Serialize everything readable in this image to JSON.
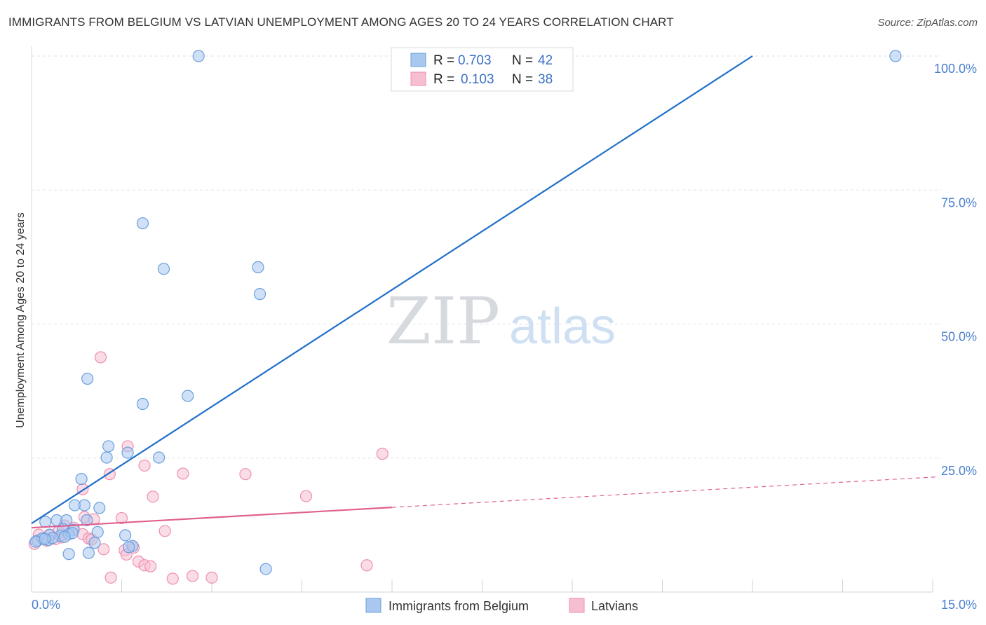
{
  "title": "IMMIGRANTS FROM BELGIUM VS LATVIAN UNEMPLOYMENT AMONG AGES 20 TO 24 YEARS CORRELATION CHART",
  "source": "Source: ZipAtlas.com",
  "watermark": {
    "zip": "ZIP",
    "atlas": "atlas"
  },
  "colors": {
    "blue": "#1f6fc9",
    "blue_fill": "#a9c8f0",
    "blue_stroke": "#6a9fdd",
    "pink": "#e06090",
    "pink_fill": "#f6bfd1",
    "pink_stroke": "#ee8fb0",
    "tick_label": "#4a7fcf",
    "grid": "#dde1e6"
  },
  "legend": [
    {
      "r_label": "R =",
      "r_value": "0.703",
      "n_label": "N =",
      "n_value": "42"
    },
    {
      "r_label": "R =",
      "r_value": "0.103",
      "n_label": "N =",
      "n_value": "38"
    }
  ],
  "chart_data": {
    "type": "scatter",
    "title": "IMMIGRANTS FROM BELGIUM VS LATVIAN UNEMPLOYMENT AMONG AGES 20 TO 24 YEARS CORRELATION CHART",
    "xlabel": "",
    "ylabel": "Unemployment Among Ages 20 to 24 years",
    "xlim": [
      0,
      15
    ],
    "ylim": [
      0,
      100
    ],
    "x_tick_labels": [
      "0.0%",
      "15.0%"
    ],
    "y_ticks": [
      25,
      50,
      75,
      100
    ],
    "y_tick_labels": [
      "25.0%",
      "50.0%",
      "75.0%",
      "100.0%"
    ],
    "legend_position": "bottom",
    "series": [
      {
        "name": "Immigrants from Belgium",
        "color": "blue",
        "r": 0.703,
        "n": 42,
        "trend": {
          "x": [
            0,
            12.0
          ],
          "y": [
            12.8,
            100
          ],
          "extended": false
        },
        "points": [
          [
            2.78,
            100
          ],
          [
            14.38,
            100
          ],
          [
            1.85,
            68.8
          ],
          [
            2.2,
            60.3
          ],
          [
            3.77,
            60.6
          ],
          [
            3.8,
            55.6
          ],
          [
            0.93,
            39.8
          ],
          [
            1.85,
            35.1
          ],
          [
            2.6,
            36.6
          ],
          [
            1.28,
            27.2
          ],
          [
            1.6,
            26.0
          ],
          [
            1.25,
            25.1
          ],
          [
            2.12,
            25.1
          ],
          [
            0.83,
            21.1
          ],
          [
            0.72,
            16.2
          ],
          [
            0.88,
            16.2
          ],
          [
            1.13,
            15.7
          ],
          [
            0.23,
            13.1
          ],
          [
            0.42,
            13.4
          ],
          [
            0.58,
            13.4
          ],
          [
            0.92,
            13.4
          ],
          [
            0.52,
            11.8
          ],
          [
            0.7,
            11.6
          ],
          [
            1.1,
            11.2
          ],
          [
            0.3,
            10.7
          ],
          [
            0.48,
            10.5
          ],
          [
            0.62,
            10.8
          ],
          [
            0.68,
            11.0
          ],
          [
            1.56,
            10.6
          ],
          [
            0.28,
            9.7
          ],
          [
            0.35,
            10.1
          ],
          [
            0.55,
            10.3
          ],
          [
            0.1,
            9.6
          ],
          [
            0.18,
            10.0
          ],
          [
            0.07,
            9.4
          ],
          [
            0.22,
            9.9
          ],
          [
            1.05,
            9.2
          ],
          [
            1.68,
            8.6
          ],
          [
            1.62,
            8.4
          ],
          [
            0.62,
            7.1
          ],
          [
            0.95,
            7.3
          ],
          [
            3.9,
            4.3
          ]
        ]
      },
      {
        "name": "Latvians",
        "color": "pink",
        "r": 0.103,
        "n": 38,
        "trend": {
          "x": [
            0,
            15
          ],
          "y": [
            12.0,
            21.5
          ],
          "solid_until_x": 6.0
        },
        "points": [
          [
            1.15,
            43.8
          ],
          [
            1.6,
            27.2
          ],
          [
            5.84,
            25.8
          ],
          [
            1.88,
            23.6
          ],
          [
            1.3,
            22.0
          ],
          [
            2.52,
            22.1
          ],
          [
            3.56,
            22.0
          ],
          [
            0.85,
            19.2
          ],
          [
            2.02,
            17.8
          ],
          [
            4.57,
            17.9
          ],
          [
            1.5,
            13.8
          ],
          [
            0.88,
            14.0
          ],
          [
            1.04,
            13.6
          ],
          [
            0.55,
            12.4
          ],
          [
            0.7,
            12.0
          ],
          [
            0.45,
            11.3
          ],
          [
            2.22,
            11.4
          ],
          [
            0.3,
            10.5
          ],
          [
            0.5,
            10.2
          ],
          [
            0.85,
            10.8
          ],
          [
            0.95,
            10.0
          ],
          [
            0.25,
            9.6
          ],
          [
            0.4,
            9.9
          ],
          [
            0.05,
            9.0
          ],
          [
            1.0,
            9.8
          ],
          [
            1.7,
            8.3
          ],
          [
            1.2,
            8.0
          ],
          [
            1.55,
            7.8
          ],
          [
            1.58,
            7.0
          ],
          [
            1.78,
            5.7
          ],
          [
            1.88,
            5.0
          ],
          [
            1.98,
            4.8
          ],
          [
            5.58,
            5.0
          ],
          [
            1.32,
            2.7
          ],
          [
            2.35,
            2.5
          ],
          [
            2.68,
            3.0
          ],
          [
            3.0,
            2.7
          ],
          [
            0.12,
            10.7
          ]
        ]
      }
    ]
  }
}
